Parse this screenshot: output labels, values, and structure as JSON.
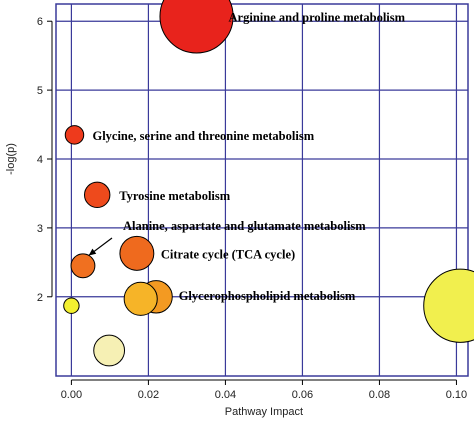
{
  "chart_data": {
    "type": "scatter",
    "title": "",
    "xlabel": "Pathway Impact",
    "ylabel": "-log(p)",
    "xlim": [
      -0.004,
      0.103
    ],
    "ylim": [
      0.85,
      6.25
    ],
    "x_ticks": [
      0.0,
      0.02,
      0.04,
      0.06,
      0.08,
      0.1
    ],
    "x_tick_labels": [
      "0.00",
      "0.02",
      "0.04",
      "0.06",
      "0.08",
      "0.10"
    ],
    "y_ticks": [
      2,
      3,
      4,
      5,
      6
    ],
    "y_tick_labels": [
      "2",
      "3",
      "4",
      "5",
      "6"
    ],
    "grid": true,
    "points": [
      {
        "x": 0.0325,
        "y": 6.07,
        "size": 0.0095,
        "color": "#e8231c",
        "label": "Arginine and proline metabolism"
      },
      {
        "x": 0.0008,
        "y": 4.35,
        "size": 0.0024,
        "color": "#ee3a1c",
        "label": "Glycine, serine and threonine metabolism"
      },
      {
        "x": 0.0067,
        "y": 3.48,
        "size": 0.0033,
        "color": "#ee4a1c",
        "label": "Tyrosine metabolism"
      },
      {
        "x": 0.003,
        "y": 2.45,
        "size": 0.0031,
        "color": "#f07020",
        "label": ""
      },
      {
        "x": 0.017,
        "y": 2.63,
        "size": 0.0044,
        "color": "#ef6a1e",
        "label": "Citrate cycle (TCA cycle)"
      },
      {
        "x": 0.022,
        "y": 2.0,
        "size": 0.0042,
        "color": "#f39a22",
        "label": ""
      },
      {
        "x": 0.018,
        "y": 1.97,
        "size": 0.0043,
        "color": "#f6b428",
        "label": "Glycerophospholipid metabolism"
      },
      {
        "x": 0.101,
        "y": 1.87,
        "size": 0.0095,
        "color": "#f1ef4e",
        "label": ""
      },
      {
        "x": 0.0,
        "y": 1.87,
        "size": 0.002,
        "color": "#f3f030",
        "label": ""
      },
      {
        "x": 0.0098,
        "y": 1.22,
        "size": 0.004,
        "color": "#f6f0b4",
        "label": ""
      }
    ],
    "annotations": [
      {
        "text": "Alanine, aspartate and glutamate metabolism",
        "arrow_to": {
          "x": 0.0045,
          "y": 2.6
        }
      }
    ]
  }
}
